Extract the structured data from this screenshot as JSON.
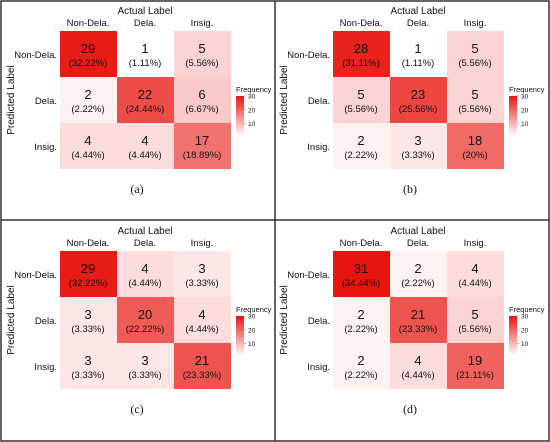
{
  "chart_data": [
    {
      "type": "heatmap",
      "panel_label": "(a)",
      "xlabel": "Actual Label",
      "ylabel": "Predicted Label",
      "x_categories": [
        "Non-Dela.",
        "Dela.",
        "Insig."
      ],
      "y_categories": [
        "Non-Dela.",
        "Dela.",
        "Insig."
      ],
      "counts": [
        [
          29,
          1,
          5
        ],
        [
          2,
          22,
          6
        ],
        [
          4,
          4,
          17
        ]
      ],
      "percents": [
        [
          "(32.22%)",
          "(1.11%)",
          "(5.56%)"
        ],
        [
          "(2.22%)",
          "(24.44%)",
          "(6.67%)"
        ],
        [
          "(4.44%)",
          "(4.44%)",
          "(18.89%)"
        ]
      ],
      "legend": {
        "title": "Frequency",
        "ticks": [
          30,
          20,
          10
        ],
        "range": [
          1,
          30
        ]
      }
    },
    {
      "type": "heatmap",
      "panel_label": "(b)",
      "xlabel": "Actual Label",
      "ylabel": "Predicted Label",
      "x_categories": [
        "Non-Dela.",
        "Dela.",
        "Insig."
      ],
      "y_categories": [
        "Non-Dela.",
        "Dela.",
        "Insig."
      ],
      "counts": [
        [
          28,
          1,
          5
        ],
        [
          5,
          23,
          5
        ],
        [
          2,
          3,
          18
        ]
      ],
      "percents": [
        [
          "(31.11%)",
          "(1.11%)",
          "(5.56%)"
        ],
        [
          "(5.56%)",
          "(25.56%)",
          "(5.56%)"
        ],
        [
          "(2.22%)",
          "(3.33%)",
          "(20%)"
        ]
      ],
      "legend": {
        "title": "Frequency",
        "ticks": [
          30,
          20,
          10
        ],
        "range": [
          1,
          30
        ]
      }
    },
    {
      "type": "heatmap",
      "panel_label": "(c)",
      "xlabel": "Actual Label",
      "ylabel": "Predicted Label",
      "x_categories": [
        "Non-Dela.",
        "Dela.",
        "Insig."
      ],
      "y_categories": [
        "Non-Dela.",
        "Dela.",
        "Insig."
      ],
      "counts": [
        [
          29,
          4,
          3
        ],
        [
          3,
          20,
          4
        ],
        [
          3,
          3,
          21
        ]
      ],
      "percents": [
        [
          "(32.22%)",
          "(4.44%)",
          "(3.33%)"
        ],
        [
          "(3.33%)",
          "(22.22%)",
          "(4.44%)"
        ],
        [
          "(3.33%)",
          "(3.33%)",
          "(23.33%)"
        ]
      ],
      "legend": {
        "title": "Frequency",
        "ticks": [
          30,
          20,
          10
        ],
        "range": [
          1,
          30
        ]
      }
    },
    {
      "type": "heatmap",
      "panel_label": "(d)",
      "xlabel": "Actual Label",
      "ylabel": "Predicted Label",
      "x_categories": [
        "Non-Dela.",
        "Dela.",
        "Insig."
      ],
      "y_categories": [
        "Non-Dela.",
        "Dela.",
        "Insig."
      ],
      "counts": [
        [
          31,
          2,
          4
        ],
        [
          2,
          21,
          5
        ],
        [
          2,
          4,
          19
        ]
      ],
      "percents": [
        [
          "(34.44%)",
          "(2.22%)",
          "(4.44%)"
        ],
        [
          "(2.22%)",
          "(23.33%)",
          "(5.56%)"
        ],
        [
          "(2.22%)",
          "(4.44%)",
          "(21.11%)"
        ]
      ],
      "legend": {
        "title": "Frequency",
        "ticks": [
          30,
          20,
          10
        ],
        "range": [
          1,
          30
        ]
      }
    }
  ],
  "colors": {
    "low": "#ffffff",
    "high": "#e8140e",
    "border": "#333333",
    "text": "#111111"
  }
}
